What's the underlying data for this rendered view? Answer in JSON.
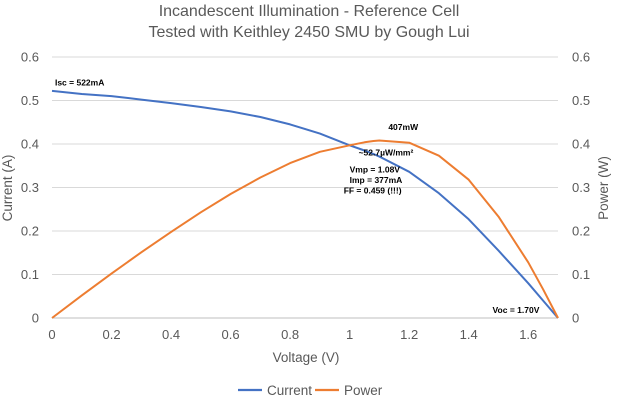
{
  "chart_data": {
    "type": "line",
    "title": "Incandescent Illumination - Reference Cell",
    "subtitle": "Tested with Keithley 2450 SMU by Gough Lui",
    "xlabel": "Voltage (V)",
    "ylabel_left": "Current (A)",
    "ylabel_right": "Power (W)",
    "xlim": [
      0,
      1.7
    ],
    "ylim": [
      0,
      0.6
    ],
    "xticks": [
      0,
      0.2,
      0.4,
      0.6,
      0.8,
      1,
      1.2,
      1.4,
      1.6
    ],
    "xtick_labels": [
      "0",
      "0.2",
      "0.4",
      "0.6",
      "0.8",
      "1",
      "1.2",
      "1.4",
      "1.6"
    ],
    "yticks": [
      0,
      0.1,
      0.2,
      0.3,
      0.4,
      0.5,
      0.6
    ],
    "ytick_labels": [
      "0",
      "0.1",
      "0.2",
      "0.3",
      "0.4",
      "0.5",
      "0.6"
    ],
    "grid": "horizontal",
    "legend_position": "bottom",
    "series": [
      {
        "name": "Current",
        "color": "#4472C4",
        "x": [
          0,
          0.1,
          0.2,
          0.3,
          0.4,
          0.5,
          0.6,
          0.7,
          0.8,
          0.9,
          1.0,
          1.05,
          1.08,
          1.1,
          1.2,
          1.3,
          1.4,
          1.5,
          1.6,
          1.65,
          1.7
        ],
        "y": [
          0.522,
          0.515,
          0.51,
          0.502,
          0.494,
          0.485,
          0.475,
          0.462,
          0.445,
          0.424,
          0.397,
          0.385,
          0.377,
          0.371,
          0.336,
          0.287,
          0.227,
          0.155,
          0.08,
          0.04,
          0.0
        ]
      },
      {
        "name": "Power",
        "color": "#ED7D31",
        "x": [
          0,
          0.1,
          0.2,
          0.3,
          0.4,
          0.5,
          0.6,
          0.7,
          0.8,
          0.9,
          1.0,
          1.05,
          1.08,
          1.1,
          1.2,
          1.3,
          1.4,
          1.5,
          1.6,
          1.65,
          1.7
        ],
        "y": [
          0.0,
          0.052,
          0.102,
          0.151,
          0.198,
          0.243,
          0.285,
          0.323,
          0.356,
          0.382,
          0.397,
          0.404,
          0.407,
          0.408,
          0.403,
          0.373,
          0.318,
          0.233,
          0.128,
          0.066,
          0.0
        ]
      }
    ],
    "annotations": [
      {
        "text": "Isc = 522mA",
        "x": 0.01,
        "y": 0.535
      },
      {
        "text": "407mW",
        "x": 1.13,
        "y": 0.432
      },
      {
        "text": "~52.7µW/mm²",
        "x": 1.03,
        "y": 0.374
      },
      {
        "text": "Vmp = 1.08V",
        "x": 1.0,
        "y": 0.334
      },
      {
        "text": "Imp = 377mA",
        "x": 1.0,
        "y": 0.31
      },
      {
        "text": "FF = 0.459 (!!!)",
        "x": 0.98,
        "y": 0.286
      },
      {
        "text": "Voc = 1.70V",
        "x": 1.48,
        "y": 0.012
      }
    ]
  }
}
